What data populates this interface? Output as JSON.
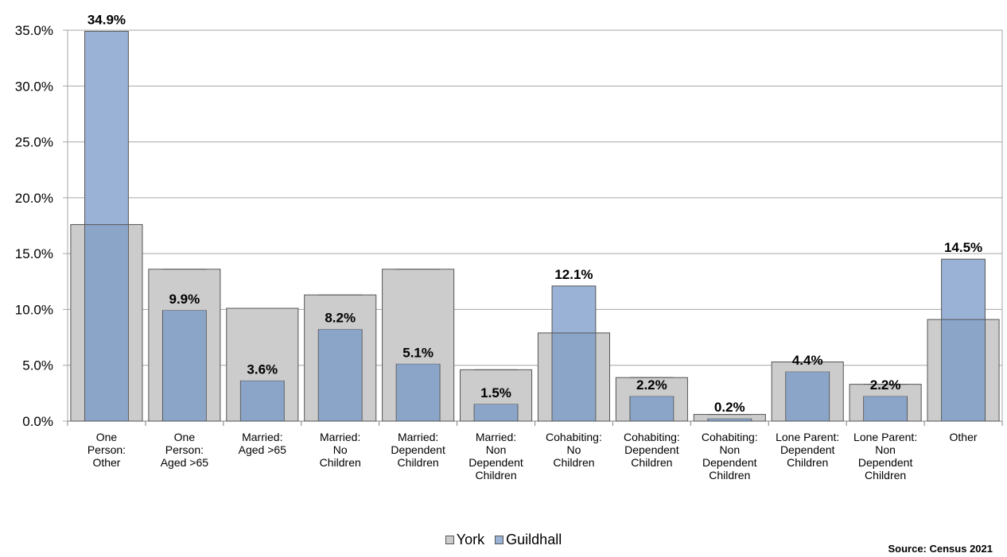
{
  "chart_data": {
    "type": "bar",
    "categories": [
      [
        "One",
        "Person:",
        "Other"
      ],
      [
        "One",
        "Person:",
        "Aged >65"
      ],
      [
        "Married:",
        "Aged >65"
      ],
      [
        "Married:",
        "No",
        "Children"
      ],
      [
        "Married:",
        "Dependent",
        "Children"
      ],
      [
        "Married:",
        "Non",
        "Dependent",
        "Children"
      ],
      [
        "Cohabiting:",
        "No",
        "Children"
      ],
      [
        "Cohabiting:",
        "Dependent",
        "Children"
      ],
      [
        "Cohabiting:",
        "Non",
        "Dependent",
        "Children"
      ],
      [
        "Lone Parent:",
        "Dependent",
        "Children"
      ],
      [
        "Lone Parent:",
        "Non",
        "Dependent",
        "Children"
      ],
      [
        "Other"
      ]
    ],
    "series": [
      {
        "name": "York",
        "values": [
          17.6,
          13.6,
          10.1,
          11.3,
          13.6,
          4.6,
          7.9,
          3.9,
          0.6,
          5.3,
          3.3,
          9.1
        ]
      },
      {
        "name": "Guildhall",
        "values": [
          34.9,
          9.9,
          3.6,
          8.2,
          5.1,
          1.5,
          12.1,
          2.2,
          0.2,
          4.4,
          2.2,
          14.5
        ]
      }
    ],
    "data_labels": [
      "34.9%",
      "9.9%",
      "3.6%",
      "8.2%",
      "5.1%",
      "1.5%",
      "12.1%",
      "2.2%",
      "0.2%",
      "4.4%",
      "2.2%",
      "14.5%"
    ],
    "yticks": [
      "0.0%",
      "5.0%",
      "10.0%",
      "15.0%",
      "20.0%",
      "25.0%",
      "30.0%",
      "35.0%"
    ],
    "ylim": [
      0,
      35
    ],
    "grid": true,
    "legend_position": "bottom",
    "colors": {
      "York": "#cccccc",
      "Guildhall": "#9ab2d6",
      "Guildhall_overlap": "#8ba5c9",
      "border": "#555555",
      "grid": "#a6a6a6"
    }
  },
  "legend": {
    "york": "York",
    "guildhall": "Guildhall"
  },
  "source": "Source: Census 2021"
}
